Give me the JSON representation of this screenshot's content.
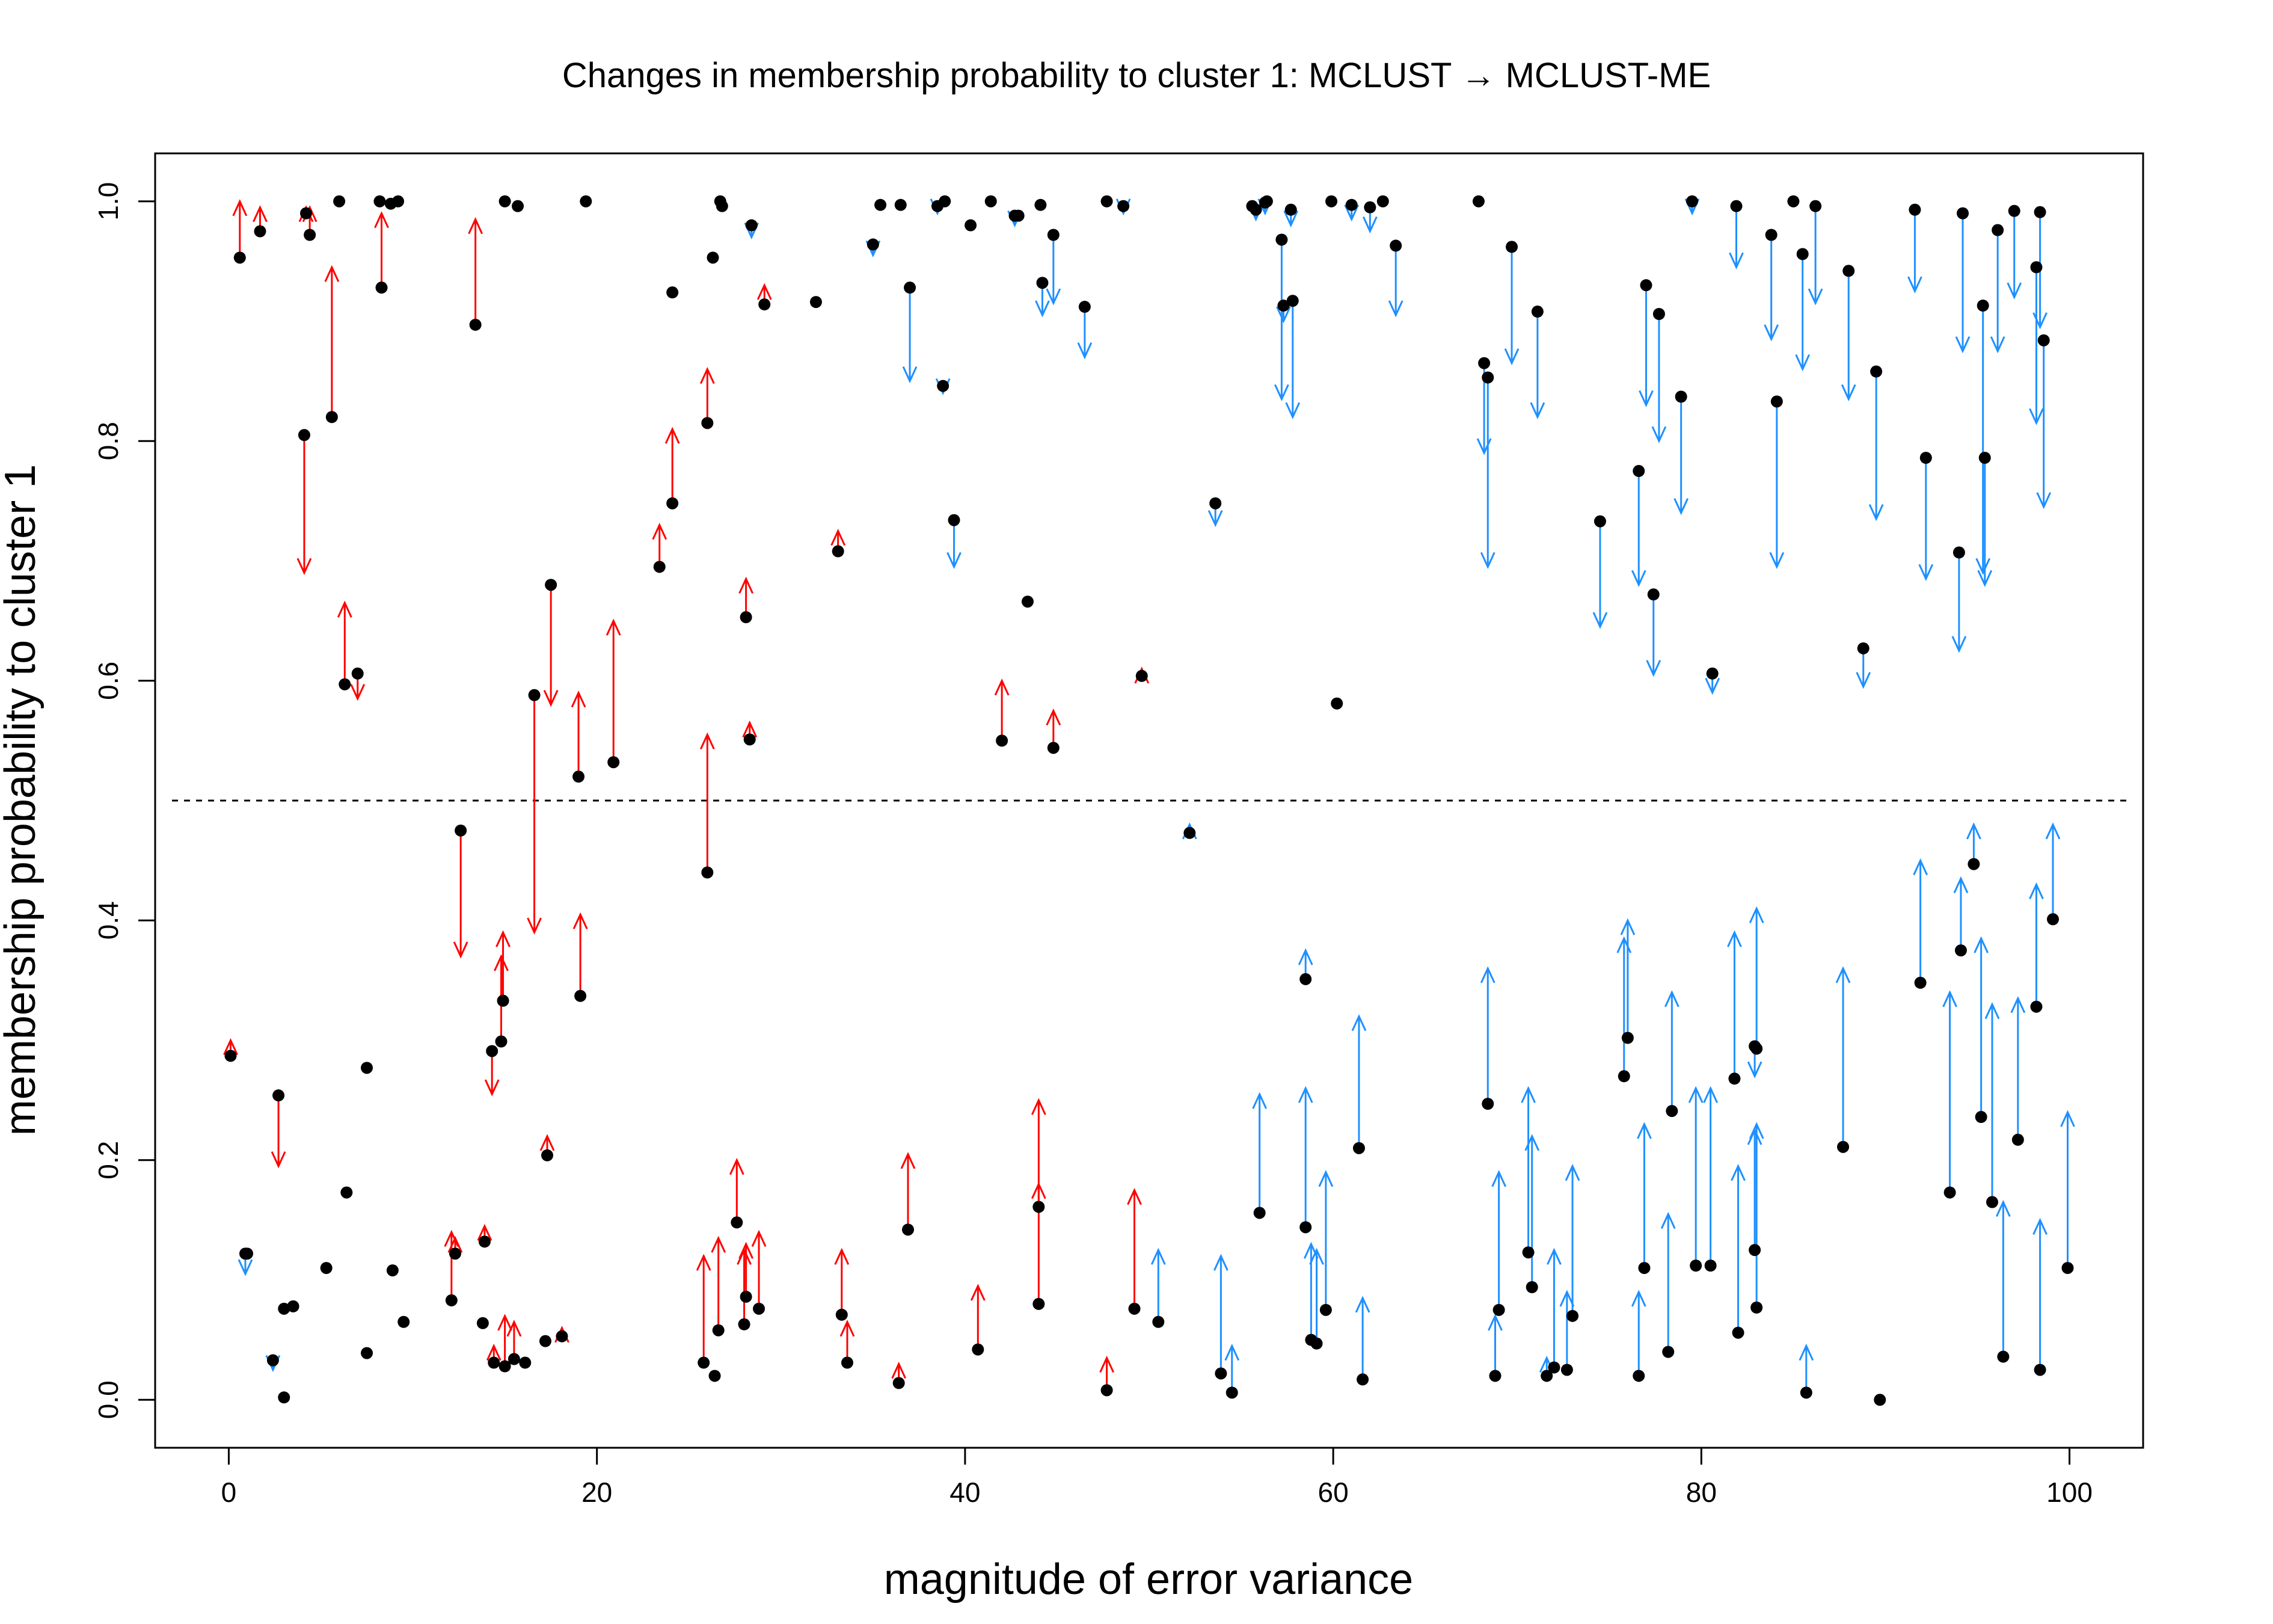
{
  "chart_data": {
    "type": "scatter",
    "title": "Changes in membership probability to cluster 1: MCLUST  →  MCLUST-ME",
    "xlabel": "magnitude of error variance",
    "ylabel": "membership probability to cluster 1",
    "xlim": [
      -4,
      104
    ],
    "ylim": [
      -0.04,
      1.04
    ],
    "x_ticks": [
      {
        "value": 0,
        "label": "0"
      },
      {
        "value": 20,
        "label": "20"
      },
      {
        "value": 40,
        "label": "40"
      },
      {
        "value": 60,
        "label": "60"
      },
      {
        "value": 80,
        "label": "80"
      },
      {
        "value": 100,
        "label": "100"
      }
    ],
    "y_ticks": [
      {
        "value": 0.0,
        "label": "0.0"
      },
      {
        "value": 0.2,
        "label": "0.2"
      },
      {
        "value": 0.4,
        "label": "0.4"
      },
      {
        "value": 0.6,
        "label": "0.6"
      },
      {
        "value": 0.8,
        "label": "0.8"
      },
      {
        "value": 1.0,
        "label": "1.0"
      }
    ],
    "reference_line_y": 0.5,
    "grid": false,
    "colors": {
      "increase": "#ff0000",
      "decrease": "#1e90ff",
      "point": "#000000",
      "blue_note": "blue arrows drawn for points crossing/moving with larger error variance"
    },
    "points": [
      [
        0.6,
        0.953,
        1.0
      ],
      [
        1.7,
        0.975,
        0.995
      ],
      [
        4.2,
        0.99,
        0.995
      ],
      [
        4.4,
        0.972,
        0.995
      ],
      [
        5.6,
        0.82,
        0.945
      ],
      [
        8.3,
        0.928,
        0.99
      ],
      [
        13.4,
        0.897,
        0.985
      ],
      [
        26.0,
        0.815,
        0.86
      ],
      [
        24.1,
        0.748,
        0.81
      ],
      [
        23.4,
        0.695,
        0.73
      ],
      [
        29.1,
        0.914,
        0.93
      ],
      [
        33.1,
        0.708,
        0.725
      ],
      [
        28.1,
        0.653,
        0.685
      ],
      [
        28.3,
        0.551,
        0.565
      ],
      [
        6.3,
        0.597,
        0.665
      ],
      [
        19.0,
        0.52,
        0.59
      ],
      [
        20.9,
        0.532,
        0.65
      ],
      [
        42.0,
        0.55,
        0.6
      ],
      [
        44.8,
        0.544,
        0.575
      ],
      [
        49.6,
        0.604,
        0.61
      ],
      [
        16.6,
        0.588,
        0.39
      ],
      [
        12.6,
        0.475,
        0.37
      ],
      [
        14.3,
        0.291,
        0.255
      ],
      [
        2.7,
        0.254,
        0.195
      ],
      [
        0.9,
        0.122,
        0.105
      ],
      [
        2.4,
        0.033,
        0.025
      ],
      [
        4.1,
        0.805,
        0.69
      ],
      [
        7.0,
        0.606,
        0.585
      ],
      [
        17.5,
        0.68,
        0.58
      ],
      [
        26.0,
        0.44,
        0.555
      ],
      [
        38.5,
        0.996,
        0.99
      ],
      [
        35.0,
        0.964,
        0.955
      ],
      [
        37.0,
        0.928,
        0.85
      ],
      [
        38.8,
        0.846,
        0.84
      ],
      [
        39.4,
        0.734,
        0.695
      ],
      [
        28.4,
        0.98,
        0.97
      ],
      [
        42.7,
        0.988,
        0.98
      ],
      [
        44.2,
        0.932,
        0.905
      ],
      [
        44.8,
        0.972,
        0.915
      ],
      [
        46.5,
        0.912,
        0.87
      ],
      [
        48.6,
        0.996,
        0.99
      ],
      [
        53.6,
        0.748,
        0.73
      ],
      [
        52.2,
        0.473,
        0.48
      ],
      [
        55.8,
        0.993,
        0.985
      ],
      [
        56.3,
        0.999,
        0.99
      ],
      [
        57.2,
        0.968,
        0.835
      ],
      [
        57.3,
        0.913,
        0.9
      ],
      [
        57.8,
        0.917,
        0.82
      ],
      [
        57.7,
        0.993,
        0.98
      ],
      [
        61.0,
        0.997,
        0.985
      ],
      [
        62.0,
        0.995,
        0.975
      ],
      [
        63.4,
        0.963,
        0.905
      ],
      [
        68.2,
        0.865,
        0.79
      ],
      [
        68.4,
        0.853,
        0.695
      ],
      [
        69.7,
        0.962,
        0.865
      ],
      [
        71.1,
        0.908,
        0.82
      ],
      [
        74.5,
        0.733,
        0.645
      ],
      [
        76.6,
        0.775,
        0.68
      ],
      [
        77.0,
        0.93,
        0.83
      ],
      [
        77.4,
        0.672,
        0.605
      ],
      [
        77.7,
        0.906,
        0.8
      ],
      [
        78.9,
        0.837,
        0.74
      ],
      [
        79.5,
        1.0,
        0.99
      ],
      [
        80.6,
        0.606,
        0.59
      ],
      [
        81.9,
        0.996,
        0.945
      ],
      [
        83.8,
        0.972,
        0.885
      ],
      [
        84.1,
        0.833,
        0.695
      ],
      [
        85.5,
        0.956,
        0.86
      ],
      [
        86.2,
        0.996,
        0.915
      ],
      [
        88.0,
        0.942,
        0.835
      ],
      [
        88.8,
        0.627,
        0.595
      ],
      [
        89.5,
        0.858,
        0.735
      ],
      [
        91.6,
        0.993,
        0.925
      ],
      [
        92.2,
        0.786,
        0.685
      ],
      [
        94.0,
        0.707,
        0.625
      ],
      [
        94.2,
        0.99,
        0.875
      ],
      [
        95.3,
        0.913,
        0.69
      ],
      [
        95.4,
        0.786,
        0.68
      ],
      [
        96.1,
        0.976,
        0.875
      ],
      [
        97.0,
        0.992,
        0.92
      ],
      [
        98.2,
        0.945,
        0.815
      ],
      [
        98.4,
        0.991,
        0.895
      ],
      [
        98.6,
        0.884,
        0.745
      ],
      [
        89.7,
        0.0,
        0.0
      ],
      [
        0.1,
        0.287,
        0.3
      ],
      [
        12.1,
        0.083,
        0.14
      ],
      [
        12.3,
        0.122,
        0.135
      ],
      [
        13.9,
        0.132,
        0.145
      ],
      [
        14.4,
        0.031,
        0.045
      ],
      [
        14.8,
        0.299,
        0.37
      ],
      [
        14.9,
        0.333,
        0.39
      ],
      [
        15.0,
        0.028,
        0.07
      ],
      [
        15.5,
        0.034,
        0.065
      ],
      [
        17.3,
        0.204,
        0.22
      ],
      [
        18.1,
        0.053,
        0.06
      ],
      [
        19.1,
        0.337,
        0.405
      ],
      [
        25.8,
        0.031,
        0.12
      ],
      [
        26.6,
        0.058,
        0.135
      ],
      [
        27.6,
        0.148,
        0.2
      ],
      [
        28.0,
        0.063,
        0.125
      ],
      [
        28.1,
        0.086,
        0.13
      ],
      [
        28.8,
        0.076,
        0.14
      ],
      [
        33.3,
        0.071,
        0.125
      ],
      [
        33.6,
        0.031,
        0.065
      ],
      [
        36.4,
        0.014,
        0.03
      ],
      [
        36.9,
        0.142,
        0.205
      ],
      [
        40.7,
        0.042,
        0.095
      ],
      [
        44.0,
        0.08,
        0.25
      ],
      [
        44.0,
        0.161,
        0.18
      ],
      [
        47.7,
        0.008,
        0.035
      ],
      [
        49.2,
        0.076,
        0.175
      ],
      [
        50.5,
        0.065,
        0.125
      ],
      [
        53.9,
        0.022,
        0.12
      ],
      [
        54.5,
        0.006,
        0.045
      ],
      [
        56.0,
        0.156,
        0.255
      ],
      [
        58.5,
        0.351,
        0.375
      ],
      [
        58.5,
        0.144,
        0.26
      ],
      [
        58.8,
        0.05,
        0.13
      ],
      [
        59.1,
        0.047,
        0.125
      ],
      [
        59.6,
        0.075,
        0.19
      ],
      [
        61.4,
        0.21,
        0.32
      ],
      [
        61.6,
        0.017,
        0.085
      ],
      [
        68.4,
        0.247,
        0.36
      ],
      [
        68.8,
        0.02,
        0.07
      ],
      [
        69.0,
        0.075,
        0.19
      ],
      [
        70.6,
        0.123,
        0.26
      ],
      [
        70.8,
        0.094,
        0.22
      ],
      [
        71.6,
        0.02,
        0.035
      ],
      [
        72.0,
        0.027,
        0.125
      ],
      [
        72.7,
        0.025,
        0.09
      ],
      [
        73.0,
        0.07,
        0.195
      ],
      [
        75.8,
        0.27,
        0.385
      ],
      [
        76.0,
        0.302,
        0.4
      ],
      [
        76.6,
        0.02,
        0.09
      ],
      [
        76.9,
        0.11,
        0.23
      ],
      [
        78.2,
        0.04,
        0.155
      ],
      [
        78.4,
        0.241,
        0.34
      ],
      [
        79.7,
        0.112,
        0.26
      ],
      [
        80.5,
        0.112,
        0.26
      ],
      [
        81.8,
        0.268,
        0.39
      ],
      [
        82.0,
        0.056,
        0.195
      ],
      [
        82.9,
        0.125,
        0.225
      ],
      [
        82.9,
        0.295,
        0.27
      ],
      [
        83.0,
        0.077,
        0.23
      ],
      [
        83.0,
        0.293,
        0.41
      ],
      [
        85.7,
        0.006,
        0.045
      ],
      [
        87.7,
        0.211,
        0.36
      ],
      [
        91.9,
        0.348,
        0.45
      ],
      [
        93.5,
        0.173,
        0.34
      ],
      [
        94.1,
        0.375,
        0.435
      ],
      [
        94.8,
        0.447,
        0.48
      ],
      [
        95.2,
        0.236,
        0.385
      ],
      [
        95.8,
        0.165,
        0.33
      ],
      [
        96.4,
        0.036,
        0.165
      ],
      [
        97.2,
        0.217,
        0.335
      ],
      [
        98.2,
        0.328,
        0.43
      ],
      [
        98.4,
        0.025,
        0.15
      ],
      [
        99.1,
        0.401,
        0.48
      ],
      [
        99.9,
        0.11,
        0.24
      ],
      [
        1.0,
        0.122,
        0.122
      ],
      [
        3.0,
        0.076,
        0.076
      ],
      [
        3.0,
        0.002,
        0.002
      ],
      [
        3.5,
        0.078,
        0.078
      ],
      [
        5.3,
        0.11,
        0.11
      ],
      [
        6.4,
        0.173,
        0.173
      ],
      [
        7.5,
        0.277,
        0.277
      ],
      [
        7.5,
        0.039,
        0.039
      ],
      [
        8.9,
        0.108,
        0.108
      ],
      [
        9.5,
        0.065,
        0.065
      ],
      [
        13.8,
        0.064,
        0.064
      ],
      [
        16.1,
        0.031,
        0.031
      ],
      [
        17.2,
        0.049,
        0.049
      ],
      [
        26.4,
        0.02,
        0.02
      ],
      [
        24.1,
        0.924,
        0.924
      ],
      [
        26.3,
        0.953,
        0.953
      ],
      [
        26.7,
        1.0,
        1.0
      ],
      [
        26.8,
        0.996,
        0.996
      ],
      [
        31.9,
        0.916,
        0.916
      ],
      [
        35.4,
        0.997,
        0.997
      ],
      [
        36.5,
        0.997,
        0.997
      ],
      [
        38.9,
        1.0,
        1.0
      ],
      [
        40.3,
        0.98,
        0.98
      ],
      [
        41.4,
        1.0,
        1.0
      ],
      [
        43.4,
        0.666,
        0.666
      ],
      [
        42.9,
        0.988,
        0.988
      ],
      [
        44.1,
        0.997,
        0.997
      ],
      [
        47.7,
        1.0,
        1.0
      ],
      [
        55.6,
        0.996,
        0.996
      ],
      [
        56.4,
        1.0,
        1.0
      ],
      [
        59.9,
        1.0,
        1.0
      ],
      [
        60.2,
        0.581,
        0.581
      ],
      [
        62.7,
        1.0,
        1.0
      ],
      [
        67.9,
        1.0,
        1.0
      ],
      [
        6.0,
        1.0,
        1.0
      ],
      [
        8.2,
        1.0,
        1.0
      ],
      [
        8.8,
        0.998,
        0.998
      ],
      [
        9.2,
        1.0,
        1.0
      ],
      [
        15.0,
        1.0,
        1.0
      ],
      [
        15.7,
        0.996,
        0.996
      ],
      [
        19.4,
        1.0,
        1.0
      ],
      [
        85.0,
        1.0,
        1.0
      ]
    ]
  }
}
